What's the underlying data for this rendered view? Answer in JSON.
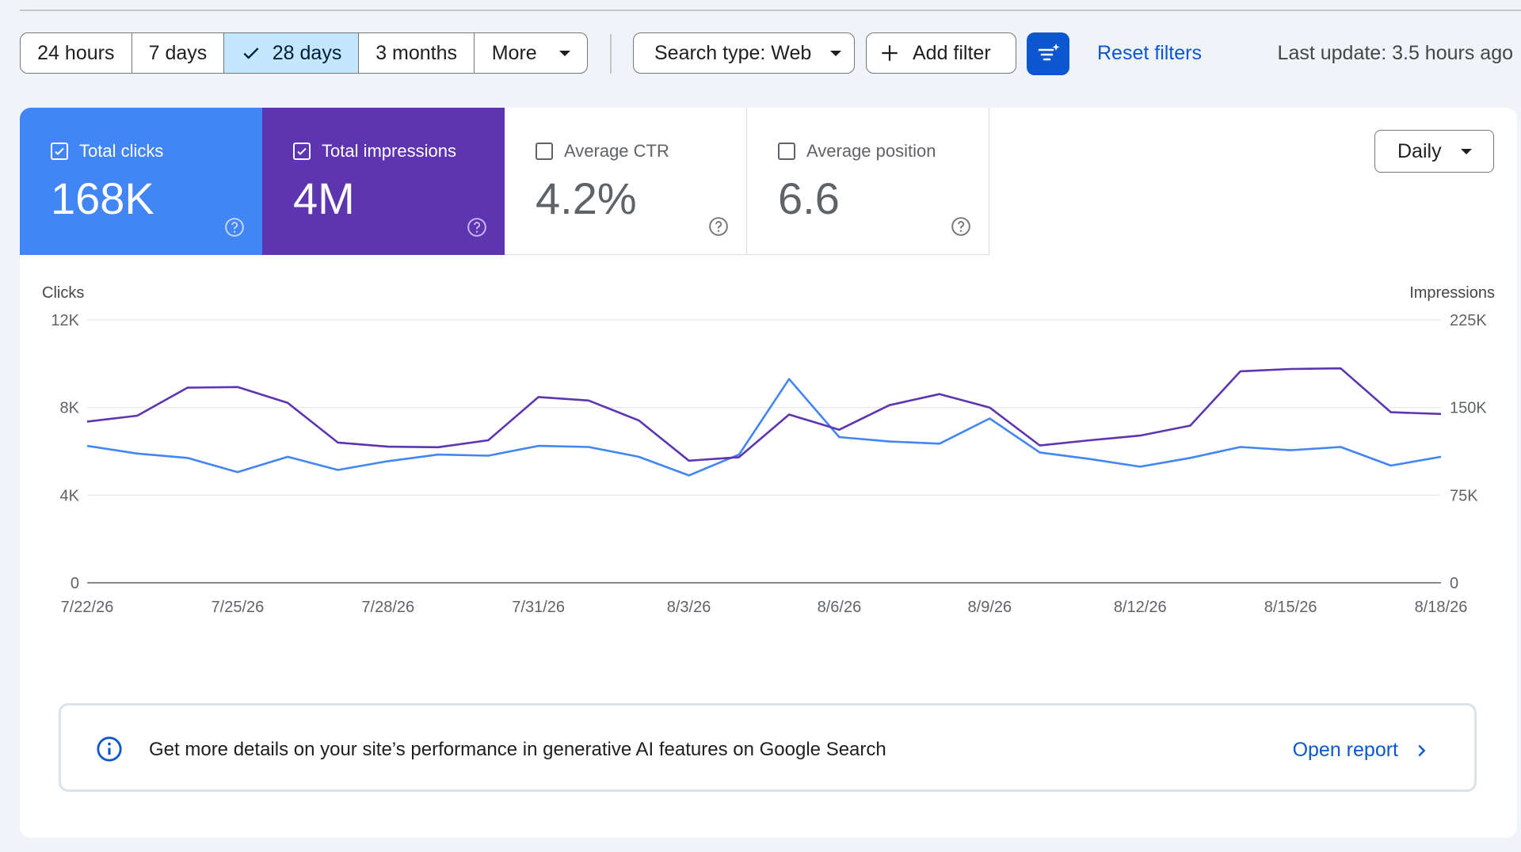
{
  "filters": {
    "date_ranges": [
      "24 hours",
      "7 days",
      "28 days",
      "3 months"
    ],
    "selected_range": "28 days",
    "more_label": "More",
    "search_type_label": "Search type: Web",
    "add_filter_label": "Add filter",
    "reset_label": "Reset filters",
    "last_update": "Last update: 3.5 hours ago"
  },
  "metrics": {
    "clicks": {
      "label": "Total clicks",
      "value": "168K",
      "checked": true
    },
    "impressions": {
      "label": "Total impressions",
      "value": "4M",
      "checked": true
    },
    "ctr": {
      "label": "Average CTR",
      "value": "4.2%",
      "checked": false
    },
    "position": {
      "label": "Average position",
      "value": "6.6",
      "checked": false
    }
  },
  "granularity": "Daily",
  "chart_data": {
    "type": "line",
    "x": [
      "7/22/26",
      "7/23/26",
      "7/24/26",
      "7/25/26",
      "7/26/26",
      "7/27/26",
      "7/28/26",
      "7/29/26",
      "7/30/26",
      "7/31/26",
      "8/1/26",
      "8/2/26",
      "8/3/26",
      "8/4/26",
      "8/5/26",
      "8/6/26",
      "8/7/26",
      "8/8/26",
      "8/9/26",
      "8/10/26",
      "8/11/26",
      "8/12/26",
      "8/13/26",
      "8/14/26",
      "8/15/26",
      "8/16/26",
      "8/17/26",
      "8/18/26"
    ],
    "x_tick_labels": [
      "7/22/26",
      "7/25/26",
      "7/28/26",
      "7/31/26",
      "8/3/26",
      "8/6/26",
      "8/9/26",
      "8/12/26",
      "8/15/26",
      "8/18/26"
    ],
    "ylabel_left": "Clicks",
    "ylabel_right": "Impressions",
    "y_ticks_left": [
      "0",
      "4K",
      "8K",
      "12K"
    ],
    "y_ticks_right": [
      "0",
      "75K",
      "150K",
      "225K"
    ],
    "ylim_left": [
      0,
      12000
    ],
    "ylim_right": [
      0,
      225000
    ],
    "series": [
      {
        "name": "Clicks",
        "axis": "left",
        "color": "#4285f4",
        "values": [
          6250,
          5900,
          5700,
          5050,
          5750,
          5150,
          5550,
          5850,
          5800,
          6250,
          6200,
          5750,
          4900,
          5850,
          9300,
          6650,
          6450,
          6350,
          7500,
          5950,
          5650,
          5300,
          5700,
          6200,
          6050,
          6200,
          5350,
          5750
        ]
      },
      {
        "name": "Impressions",
        "axis": "right",
        "color": "#5e35b1",
        "values": [
          138000,
          143000,
          167000,
          167500,
          154000,
          120000,
          116500,
          116000,
          122000,
          159000,
          156000,
          139000,
          104500,
          107500,
          144000,
          131000,
          152000,
          161500,
          150000,
          117500,
          122000,
          126000,
          134500,
          181000,
          183000,
          183500,
          146000,
          144500
        ]
      }
    ],
    "grid": true
  },
  "banner": {
    "text": "Get more details on your site’s performance in generative AI features on Google Search",
    "link": "Open report"
  },
  "colors": {
    "accent": "#0b57d0",
    "clicks": "#4285f4",
    "impressions": "#5e35b1",
    "selected_bg": "#c2e7ff"
  }
}
